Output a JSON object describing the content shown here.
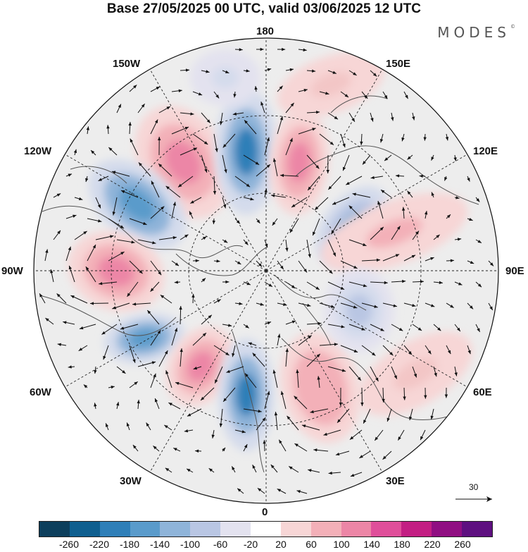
{
  "title": "Base 27/05/2025 00 UTC, valid 03/06/2025 12 UTC",
  "brand": "MODES",
  "brand_mark": "©",
  "map": {
    "projection": "north-polar-stereographic",
    "longitude_labels": {
      "top": "180",
      "bottom": "0",
      "left": "90W",
      "right": "90E",
      "upper_left_1": "150W",
      "upper_left_2": "120W",
      "lower_left_1": "60W",
      "lower_left_2": "30W",
      "upper_right_1": "150E",
      "upper_right_2": "120E",
      "lower_right_1": "60E",
      "lower_right_2": "30E"
    },
    "colors": {
      "coastline": "#555555",
      "graticule": "#222222",
      "vector": "#111111",
      "background_field": "#ededed"
    }
  },
  "reference_vector": {
    "label": "30"
  },
  "colorbar": {
    "colors": [
      "#0d3f5c",
      "#0f5f8f",
      "#2f7fb8",
      "#5a9bcb",
      "#8fb4d9",
      "#b9c6e3",
      "#e3e2ef",
      "#ffffff",
      "#f7d6d6",
      "#f3b0b8",
      "#ec86a6",
      "#df4f9a",
      "#c31f83",
      "#900f82",
      "#5e1080"
    ],
    "tick_labels": [
      "-260",
      "-220",
      "-180",
      "-140",
      "-100",
      "-60",
      "-20",
      "20",
      "60",
      "100",
      "140",
      "180",
      "220",
      "260"
    ]
  }
}
